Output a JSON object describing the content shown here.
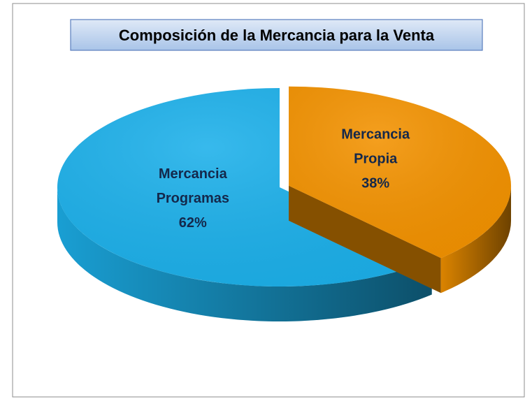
{
  "chart_data": {
    "type": "pie",
    "title": "Composición de la Mercancia para la Venta",
    "categories": [
      "Mercancia Propia",
      "Mercancia Programas"
    ],
    "values": [
      38,
      62
    ],
    "value_labels": [
      "38%",
      "62%"
    ],
    "colors": [
      "#f39200",
      "#1cb0ea"
    ]
  }
}
